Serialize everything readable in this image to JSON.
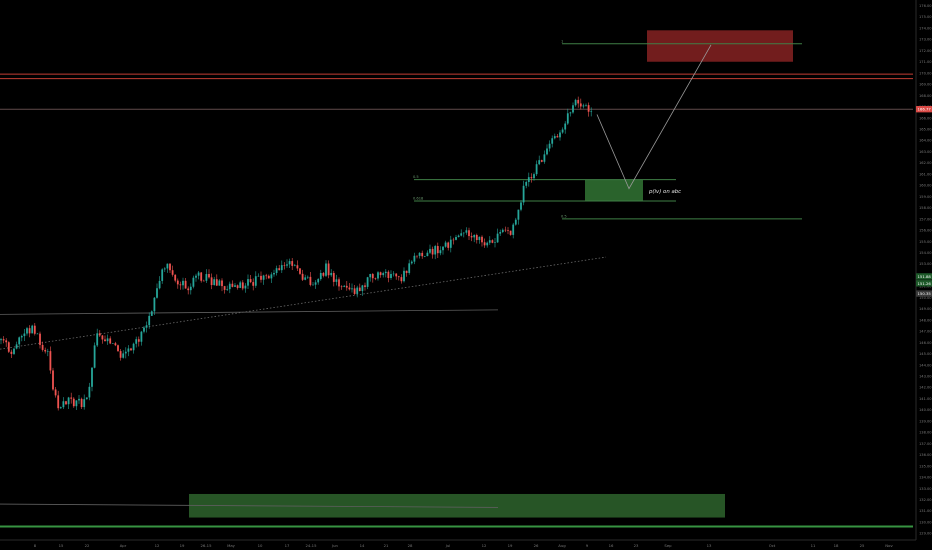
{
  "chart_data": {
    "type": "candlestick",
    "title": "",
    "ylim": [
      128.4,
      176.5
    ],
    "y_ticks": [
      "176.00",
      "175.00",
      "174.00",
      "173.00",
      "172.00",
      "171.00",
      "170.00",
      "169.00",
      "168.00",
      "167.00",
      "166.00",
      "165.00",
      "164.00",
      "163.00",
      "162.00",
      "161.00",
      "160.00",
      "159.00",
      "158.00",
      "157.00",
      "156.00",
      "155.00",
      "154.00",
      "153.00",
      "152.00",
      "151.00",
      "150.00",
      "149.00",
      "148.00",
      "147.00",
      "146.00",
      "145.00",
      "144.00",
      "143.00",
      "142.00",
      "141.00",
      "140.00",
      "139.00",
      "138.00",
      "137.00",
      "136.00",
      "135.00",
      "134.00",
      "133.00",
      "132.00",
      "131.00",
      "130.00",
      "129.00"
    ],
    "x_labels": [
      {
        "label": "8",
        "t": 35
      },
      {
        "label": "15",
        "t": 61
      },
      {
        "label": "22",
        "t": 87
      },
      {
        "label": "Apr",
        "t": 123
      },
      {
        "label": "12",
        "t": 157
      },
      {
        "label": "19",
        "t": 182
      },
      {
        "label": "26-15",
        "t": 206
      },
      {
        "label": "May",
        "t": 231
      },
      {
        "label": "10",
        "t": 260
      },
      {
        "label": "17",
        "t": 287
      },
      {
        "label": "24-15",
        "t": 311
      },
      {
        "label": "Jun",
        "t": 335
      },
      {
        "label": "14",
        "t": 362
      },
      {
        "label": "21",
        "t": 386
      },
      {
        "label": "28",
        "t": 410
      },
      {
        "label": "Jul",
        "t": 448
      },
      {
        "label": "12",
        "t": 484
      },
      {
        "label": "19",
        "t": 510
      },
      {
        "label": "26",
        "t": 536
      },
      {
        "label": "Aug",
        "t": 562
      },
      {
        "label": "9",
        "t": 587
      },
      {
        "label": "16",
        "t": 611
      },
      {
        "label": "23",
        "t": 636
      },
      {
        "label": "Sep",
        "t": 668
      },
      {
        "label": "13",
        "t": 709
      },
      {
        "label": "Oct",
        "t": 772
      },
      {
        "label": "11",
        "t": 813
      },
      {
        "label": "18",
        "t": 836
      },
      {
        "label": "25",
        "t": 862
      },
      {
        "label": "Nov",
        "t": 889
      }
    ],
    "last_price": {
      "label": "166.77",
      "value": 166.77
    },
    "price_tags": [
      {
        "label": "151.88",
        "value": 151.88,
        "color": "#1e5a2a"
      },
      {
        "label": "151.26",
        "value": 151.26,
        "color": "#1e5a2a"
      },
      {
        "label": "150.35",
        "value": 150.35,
        "color": "#3a3a3a"
      }
    ],
    "series": [
      {
        "segment": "early_decline_and_base",
        "t_range": [
          0,
          96
        ],
        "anchors": [
          [
            0,
            146.2
          ],
          [
            12,
            145.0
          ],
          [
            22,
            146.8
          ],
          [
            32,
            147.3
          ],
          [
            40,
            146.2
          ],
          [
            48,
            144.8
          ],
          [
            54,
            141.3
          ],
          [
            60,
            139.8
          ],
          [
            68,
            141.0
          ],
          [
            76,
            140.4
          ],
          [
            86,
            140.9
          ],
          [
            92,
            143.6
          ],
          [
            96,
            146.5
          ]
        ]
      },
      {
        "segment": "march_april_rally",
        "t_range": [
          97,
          208
        ],
        "anchors": [
          [
            97,
            146.5
          ],
          [
            108,
            146.1
          ],
          [
            118,
            145.2
          ],
          [
            124,
            144.6
          ],
          [
            134,
            145.9
          ],
          [
            146,
            147.3
          ],
          [
            156,
            150.5
          ],
          [
            164,
            153.0
          ],
          [
            176,
            151.6
          ],
          [
            190,
            151.0
          ],
          [
            200,
            152.0
          ],
          [
            208,
            151.6
          ]
        ]
      },
      {
        "segment": "may_june_range",
        "t_range": [
          209,
          400
        ],
        "anchors": [
          [
            209,
            151.6
          ],
          [
            222,
            151.0
          ],
          [
            234,
            150.7
          ],
          [
            246,
            151.2
          ],
          [
            260,
            151.6
          ],
          [
            274,
            152.4
          ],
          [
            288,
            153.2
          ],
          [
            300,
            152.2
          ],
          [
            312,
            151.3
          ],
          [
            326,
            152.6
          ],
          [
            340,
            151.1
          ],
          [
            354,
            150.3
          ],
          [
            368,
            151.6
          ],
          [
            382,
            152.4
          ],
          [
            400,
            151.7
          ]
        ]
      },
      {
        "segment": "july_advance",
        "t_range": [
          401,
          512
        ],
        "anchors": [
          [
            401,
            151.7
          ],
          [
            414,
            153.3
          ],
          [
            428,
            154.1
          ],
          [
            440,
            154.3
          ],
          [
            452,
            155.0
          ],
          [
            464,
            156.2
          ],
          [
            476,
            155.2
          ],
          [
            488,
            155.0
          ],
          [
            500,
            155.5
          ],
          [
            512,
            156.0
          ]
        ]
      },
      {
        "segment": "august_breakout",
        "t_range": [
          513,
          592
        ],
        "anchors": [
          [
            513,
            156.0
          ],
          [
            520,
            158.5
          ],
          [
            526,
            160.2
          ],
          [
            532,
            160.6
          ],
          [
            538,
            162.1
          ],
          [
            546,
            163.0
          ],
          [
            554,
            164.1
          ],
          [
            562,
            164.7
          ],
          [
            568,
            166.2
          ],
          [
            574,
            167.5
          ],
          [
            580,
            167.5
          ],
          [
            586,
            166.9
          ],
          [
            592,
            166.8
          ]
        ]
      }
    ],
    "levels": [
      {
        "name": "resistance_upper",
        "value": 169.9,
        "color": "#d9453a"
      },
      {
        "name": "resistance_lower",
        "value": 169.5,
        "color": "#d9453a"
      },
      {
        "name": "current_price",
        "value": 166.77,
        "color": "#8a6b6b"
      },
      {
        "name": "support_bottom",
        "value": 129.6,
        "color": "#3ea34a"
      }
    ],
    "fib_levels": [
      {
        "label": "1",
        "value": 172.6,
        "t_range": [
          562,
          802
        ]
      },
      {
        "label": "0.5",
        "value": 160.5,
        "t_range": [
          414,
          676
        ]
      },
      {
        "label": "0.618",
        "value": 158.6,
        "t_range": [
          414,
          676
        ]
      },
      {
        "label": "0.5",
        "value": 157.0,
        "t_range": [
          562,
          802
        ]
      }
    ],
    "zones": [
      {
        "name": "target_zone",
        "t_range": [
          647,
          793
        ],
        "price_range": [
          171.0,
          173.8
        ],
        "color": "#7c1f1f"
      },
      {
        "name": "entry_zone",
        "t_range": [
          585,
          643
        ],
        "price_range": [
          158.6,
          160.5
        ],
        "color": "#2e6b30"
      },
      {
        "name": "demand_zone",
        "t_range": [
          189,
          725
        ],
        "price_range": [
          130.4,
          132.5
        ],
        "color": "#2a5c29"
      }
    ],
    "annotation": {
      "text": "p(iv) on abc",
      "t": 649,
      "value": 159.3
    },
    "projection": [
      [
        597,
        166.3
      ],
      [
        629,
        159.7
      ],
      [
        711,
        172.5
      ]
    ],
    "trendlines": [
      {
        "from": [
          0,
          145.4
        ],
        "to": [
          606,
          153.6
        ],
        "style": "dotted"
      },
      {
        "from": [
          0,
          148.5
        ],
        "to": [
          498,
          148.9
        ],
        "style": "solid"
      },
      {
        "from": [
          0,
          131.6
        ],
        "to": [
          498,
          131.3
        ],
        "style": "solid"
      }
    ]
  }
}
